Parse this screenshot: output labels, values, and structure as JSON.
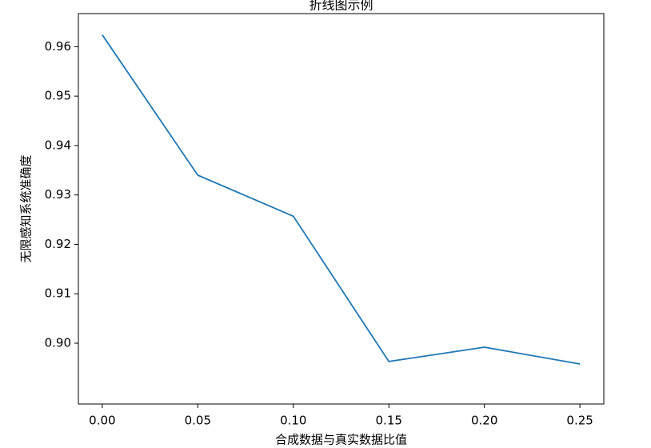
{
  "chart_data": {
    "type": "line",
    "title": "折线图示例",
    "xlabel": "合成数据与真实数据比值",
    "ylabel": "无限感知系统准确度",
    "x": [
      0.0,
      0.05,
      0.1,
      0.15,
      0.2,
      0.25
    ],
    "series": [
      {
        "values": [
          0.9624,
          0.934,
          0.9257,
          0.8963,
          0.8992,
          0.8958
        ],
        "color": "#1f77b4"
      }
    ],
    "xlim": [
      -0.0125,
      0.2625
    ],
    "ylim": [
      0.8877,
      0.9667
    ],
    "xticks": [
      0.0,
      0.05,
      0.1,
      0.15,
      0.2,
      0.25
    ],
    "xtick_labels": [
      "0.00",
      "0.05",
      "0.10",
      "0.15",
      "0.20",
      "0.25"
    ],
    "yticks": [
      0.9,
      0.91,
      0.92,
      0.93,
      0.94,
      0.95,
      0.96
    ],
    "ytick_labels": [
      "0.90",
      "0.91",
      "0.92",
      "0.93",
      "0.94",
      "0.95",
      "0.96"
    ],
    "grid": false,
    "legend": false
  }
}
